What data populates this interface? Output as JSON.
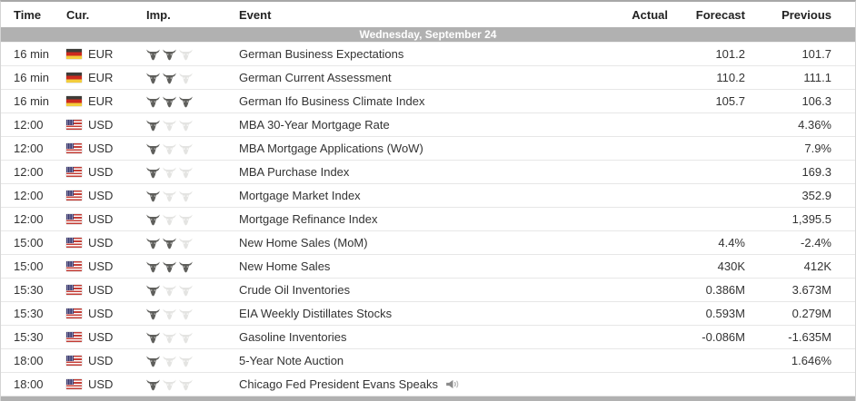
{
  "table": {
    "columns": {
      "time": "Time",
      "cur": "Cur.",
      "imp": "Imp.",
      "event": "Event",
      "actual": "Actual",
      "forecast": "Forecast",
      "previous": "Previous"
    },
    "date_header": "Wednesday, September 24",
    "rows": [
      {
        "time": "16 min",
        "currency": "EUR",
        "flag": "de",
        "importance": 2,
        "event": "German Business Expectations",
        "actual": "",
        "forecast": "101.2",
        "previous": "101.7",
        "speaker": false
      },
      {
        "time": "16 min",
        "currency": "EUR",
        "flag": "de",
        "importance": 2,
        "event": "German Current Assessment",
        "actual": "",
        "forecast": "110.2",
        "previous": "111.1",
        "speaker": false
      },
      {
        "time": "16 min",
        "currency": "EUR",
        "flag": "de",
        "importance": 3,
        "event": "German Ifo Business Climate Index",
        "actual": "",
        "forecast": "105.7",
        "previous": "106.3",
        "speaker": false
      },
      {
        "time": "12:00",
        "currency": "USD",
        "flag": "us",
        "importance": 1,
        "event": "MBA 30-Year Mortgage Rate",
        "actual": "",
        "forecast": "",
        "previous": "4.36%",
        "speaker": false
      },
      {
        "time": "12:00",
        "currency": "USD",
        "flag": "us",
        "importance": 1,
        "event": "MBA Mortgage Applications (WoW)",
        "actual": "",
        "forecast": "",
        "previous": "7.9%",
        "speaker": false
      },
      {
        "time": "12:00",
        "currency": "USD",
        "flag": "us",
        "importance": 1,
        "event": "MBA Purchase Index",
        "actual": "",
        "forecast": "",
        "previous": "169.3",
        "speaker": false
      },
      {
        "time": "12:00",
        "currency": "USD",
        "flag": "us",
        "importance": 1,
        "event": "Mortgage Market Index",
        "actual": "",
        "forecast": "",
        "previous": "352.9",
        "speaker": false
      },
      {
        "time": "12:00",
        "currency": "USD",
        "flag": "us",
        "importance": 1,
        "event": "Mortgage Refinance Index",
        "actual": "",
        "forecast": "",
        "previous": "1,395.5",
        "speaker": false
      },
      {
        "time": "15:00",
        "currency": "USD",
        "flag": "us",
        "importance": 2,
        "event": "New Home Sales (MoM)",
        "actual": "",
        "forecast": "4.4%",
        "previous": "-2.4%",
        "speaker": false
      },
      {
        "time": "15:00",
        "currency": "USD",
        "flag": "us",
        "importance": 3,
        "event": "New Home Sales",
        "actual": "",
        "forecast": "430K",
        "previous": "412K",
        "speaker": false
      },
      {
        "time": "15:30",
        "currency": "USD",
        "flag": "us",
        "importance": 1,
        "event": "Crude Oil Inventories",
        "actual": "",
        "forecast": "0.386M",
        "previous": "3.673M",
        "speaker": false
      },
      {
        "time": "15:30",
        "currency": "USD",
        "flag": "us",
        "importance": 1,
        "event": "EIA Weekly Distillates Stocks",
        "actual": "",
        "forecast": "0.593M",
        "previous": "0.279M",
        "speaker": false
      },
      {
        "time": "15:30",
        "currency": "USD",
        "flag": "us",
        "importance": 1,
        "event": "Gasoline Inventories",
        "actual": "",
        "forecast": "-0.086M",
        "previous": "-1.635M",
        "speaker": false
      },
      {
        "time": "18:00",
        "currency": "USD",
        "flag": "us",
        "importance": 1,
        "event": "5-Year Note Auction",
        "actual": "",
        "forecast": "",
        "previous": "1.646%",
        "speaker": false
      },
      {
        "time": "18:00",
        "currency": "USD",
        "flag": "us",
        "importance": 1,
        "event": "Chicago Fed President Evans Speaks",
        "actual": "",
        "forecast": "",
        "previous": "",
        "speaker": true
      }
    ]
  },
  "icons": {
    "importance": "bull-icon",
    "speech": "speaker-icon",
    "eur_flag": "germany-flag-icon",
    "usd_flag": "us-flag-icon"
  },
  "colors": {
    "date_row_bg": "#b1b1b1",
    "footer_bar_bg": "#b1b1b1",
    "bull_active": "#5f5f5c",
    "bull_inactive": "#e4e4e2",
    "text": "#333333",
    "header_text": "#222222",
    "row_border": "#e7e7e7",
    "flag_de_stripes": [
      "#3d3c38",
      "#cd2a1e",
      "#f3cd3c"
    ],
    "flag_us_stripe": "#c33d36",
    "flag_us_canton": "#3a3970"
  }
}
